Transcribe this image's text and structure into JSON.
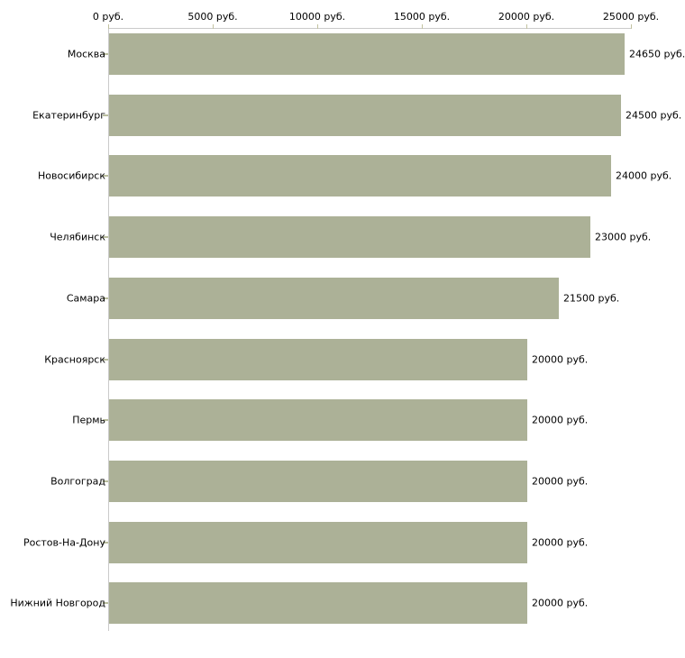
{
  "chart_data": {
    "type": "bar",
    "orientation": "horizontal",
    "title": "",
    "xlabel": "",
    "ylabel": "",
    "unit": "руб.",
    "categories": [
      "Москва",
      "Екатеринбург",
      "Новосибирск",
      "Челябинск",
      "Самара",
      "Красноярск",
      "Пермь",
      "Волгоград",
      "Ростов-На-Дону",
      "Нижний Новгород"
    ],
    "values": [
      24650,
      24500,
      24000,
      23000,
      21500,
      20000,
      20000,
      20000,
      20000,
      20000
    ],
    "value_labels": [
      "24650 руб.",
      "24500 руб.",
      "24000 руб.",
      "23000 руб.",
      "21500 руб.",
      "20000 руб.",
      "20000 руб.",
      "20000 руб.",
      "20000 руб.",
      "20000 руб."
    ],
    "x_ticks": [
      0,
      5000,
      10000,
      15000,
      20000,
      25000
    ],
    "x_tick_labels": [
      "0 руб.",
      "5000 руб.",
      "10000 руб.",
      "15000 руб.",
      "20000 руб.",
      "25000 руб."
    ],
    "xlim": [
      0,
      25000
    ],
    "axis_position": "top",
    "grid": false,
    "legend": false,
    "bar_color": "#acb197",
    "axis_line_color": "#cbcbcb",
    "tick_color": "#c2c2a0",
    "category_tick_color": "#b9bd9e",
    "text_color": "#000000",
    "background_color": "#ffffff"
  }
}
